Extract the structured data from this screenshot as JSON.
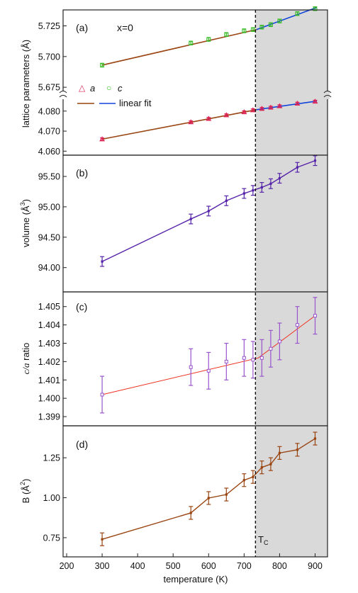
{
  "figure": {
    "xlabel": "temperature (K)",
    "x_ticks": [
      200,
      300,
      400,
      500,
      600,
      700,
      800,
      900
    ],
    "xlim": [
      190,
      935
    ],
    "tc_x": 732,
    "tc_label": "T",
    "tc_label_sub": "C",
    "shade_color": "#d9d9d9"
  },
  "chart_data": [
    {
      "type": "scatter",
      "panel_label": "(a)",
      "annotation": "x=0",
      "ylabel": "lattice parameters (Å)",
      "legend": {
        "a_symbol": "a",
        "c_symbol": "c",
        "fit_label": "linear fit",
        "placement": "top-left"
      },
      "upper_yticks": [
        5.675,
        5.7,
        5.725
      ],
      "upper_ylim": [
        5.667,
        5.738
      ],
      "lower_yticks": [
        4.06,
        4.07,
        4.08
      ],
      "lower_ylim": [
        4.058,
        4.087
      ],
      "series": [
        {
          "name": "c",
          "color": "#33bb22",
          "x": [
            300,
            550,
            600,
            650,
            700,
            725,
            750,
            775,
            800,
            850,
            900
          ],
          "y": [
            5.693,
            5.711,
            5.714,
            5.718,
            5.721,
            5.722,
            5.724,
            5.726,
            5.729,
            5.735,
            5.739
          ],
          "err": 0.0015
        },
        {
          "name": "a",
          "color": "#dd2255",
          "x": [
            300,
            550,
            600,
            650,
            700,
            725,
            750,
            775,
            800,
            850,
            900
          ],
          "y": [
            4.066,
            4.0745,
            4.0762,
            4.078,
            4.0795,
            4.0805,
            4.0812,
            4.0818,
            4.0825,
            4.0838,
            4.0848
          ],
          "err": 0.0006
        }
      ],
      "fits": [
        {
          "color": "#994411",
          "x": [
            300,
            735
          ],
          "y": [
            5.693,
            5.722
          ],
          "part": "upper"
        },
        {
          "color": "#1144dd",
          "x": [
            735,
            905
          ],
          "y": [
            5.722,
            5.74
          ],
          "part": "upper"
        },
        {
          "color": "#994411",
          "x": [
            300,
            735
          ],
          "y": [
            4.066,
            4.0807
          ],
          "part": "lower"
        },
        {
          "color": "#1144dd",
          "x": [
            735,
            905
          ],
          "y": [
            4.0807,
            4.085
          ],
          "part": "lower"
        }
      ]
    },
    {
      "type": "line",
      "panel_label": "(b)",
      "ylabel": "volume (Å",
      "ylabel_sup": "3",
      "ylabel_end": ")",
      "yticks": [
        94.0,
        94.5,
        95.0,
        95.5
      ],
      "ytick_labels": [
        "94.00",
        "94.50",
        "95.00",
        "95.50"
      ],
      "ylim": [
        93.6,
        95.85
      ],
      "color": "#5522aa",
      "x": [
        300,
        550,
        600,
        650,
        700,
        725,
        750,
        775,
        800,
        850,
        900
      ],
      "y": [
        94.1,
        94.8,
        94.93,
        95.1,
        95.22,
        95.27,
        95.32,
        95.38,
        95.47,
        95.65,
        95.76
      ],
      "err": 0.08
    },
    {
      "type": "scatter",
      "panel_label": "(c)",
      "ylabel_italic": "c/a",
      "ylabel_rest": " ratio",
      "yticks": [
        1.399,
        1.4,
        1.401,
        1.402,
        1.403,
        1.404,
        1.405
      ],
      "ytick_labels": [
        "1.399",
        "1.400",
        "1.401",
        "1.402",
        "1.403",
        "1.404",
        "1.405"
      ],
      "ylim": [
        1.3985,
        1.4058
      ],
      "marker_color": "#9955cc",
      "line_color": "#ee3322",
      "x": [
        300,
        550,
        600,
        650,
        700,
        725,
        750,
        775,
        800,
        850,
        900
      ],
      "y": [
        1.4002,
        1.4017,
        1.4015,
        1.402,
        1.4022,
        1.4021,
        1.4022,
        1.4027,
        1.4031,
        1.404,
        1.4045
      ],
      "err": [
        0.001,
        0.001,
        0.001,
        0.001,
        0.001,
        0.001,
        0.001,
        0.001,
        0.001,
        0.001,
        0.001
      ],
      "fit_x": [
        300,
        740,
        900
      ],
      "fit_y": [
        1.4002,
        1.4022,
        1.4045
      ]
    },
    {
      "type": "line",
      "panel_label": "(d)",
      "ylabel": "B (Å",
      "ylabel_sup": "2",
      "ylabel_end": ")",
      "yticks": [
        0.75,
        1.0,
        1.25
      ],
      "ytick_labels": [
        "0.75",
        "1.00",
        "1.25"
      ],
      "ylim": [
        0.63,
        1.45
      ],
      "color": "#994411",
      "x": [
        300,
        550,
        600,
        650,
        700,
        725,
        750,
        775,
        800,
        850,
        900
      ],
      "y": [
        0.74,
        0.905,
        0.998,
        1.02,
        1.11,
        1.13,
        1.19,
        1.21,
        1.28,
        1.3,
        1.37
      ],
      "err": 0.04
    }
  ]
}
